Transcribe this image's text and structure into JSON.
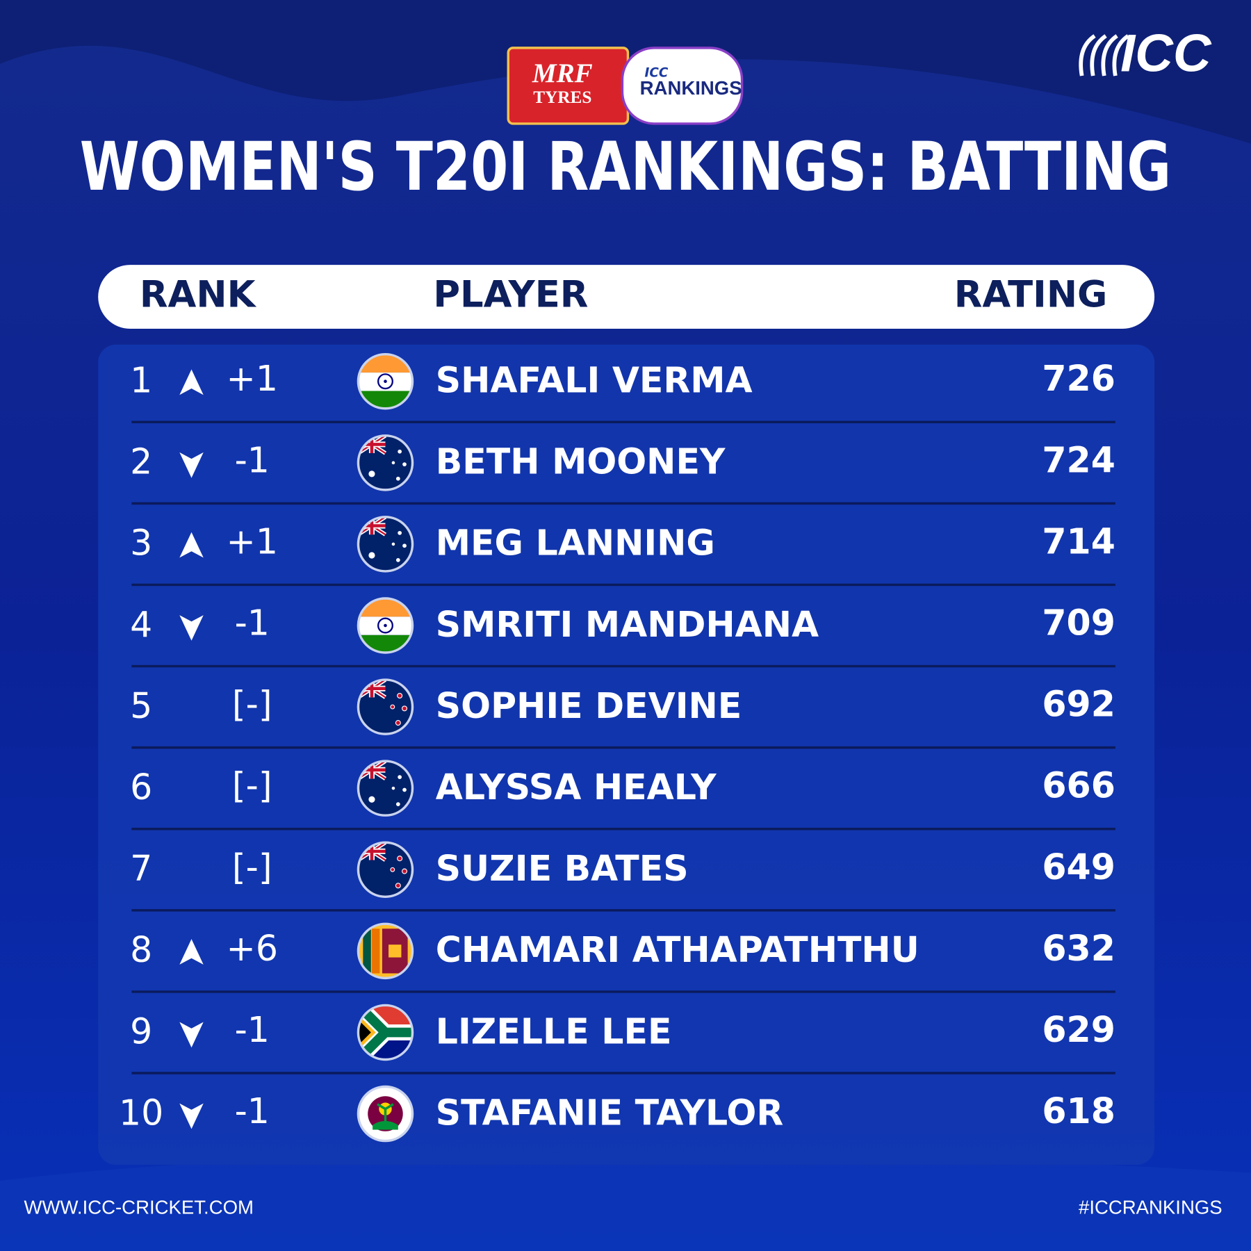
{
  "logos": {
    "sponsor": "MRF",
    "sponsor_sub": "TYRES",
    "badge_small": "ICC",
    "badge": "RANKINGS",
    "brand": "ICC"
  },
  "title": "WOMEN'S T20I RANKINGS: BATTING",
  "table": {
    "columns": [
      "RANK",
      "PLAYER",
      "RATING"
    ],
    "rows": [
      [
        1,
        "+1",
        "SHAFALI VERMA",
        726
      ],
      [
        2,
        "-1",
        "BETH MOONEY",
        724
      ],
      [
        3,
        "+1",
        "MEG LANNING",
        714
      ],
      [
        4,
        "-1",
        "SMRITI MANDHANA",
        709
      ],
      [
        5,
        "[-]",
        "SOPHIE DEVINE",
        692
      ],
      [
        6,
        "[-]",
        "ALYSSA HEALY",
        666
      ],
      [
        7,
        "[-]",
        "SUZIE BATES",
        649
      ],
      [
        8,
        "+6",
        "CHAMARI ATHAPATHTHU",
        632
      ],
      [
        9,
        "-1",
        "LIZELLE LEE",
        629
      ],
      [
        10,
        "-1",
        "STAFANIE TAYLOR",
        618
      ]
    ]
  },
  "footer": {
    "website": "WWW.ICC-CRICKET.COM",
    "hashtag": "#ICCRANKINGS"
  }
}
